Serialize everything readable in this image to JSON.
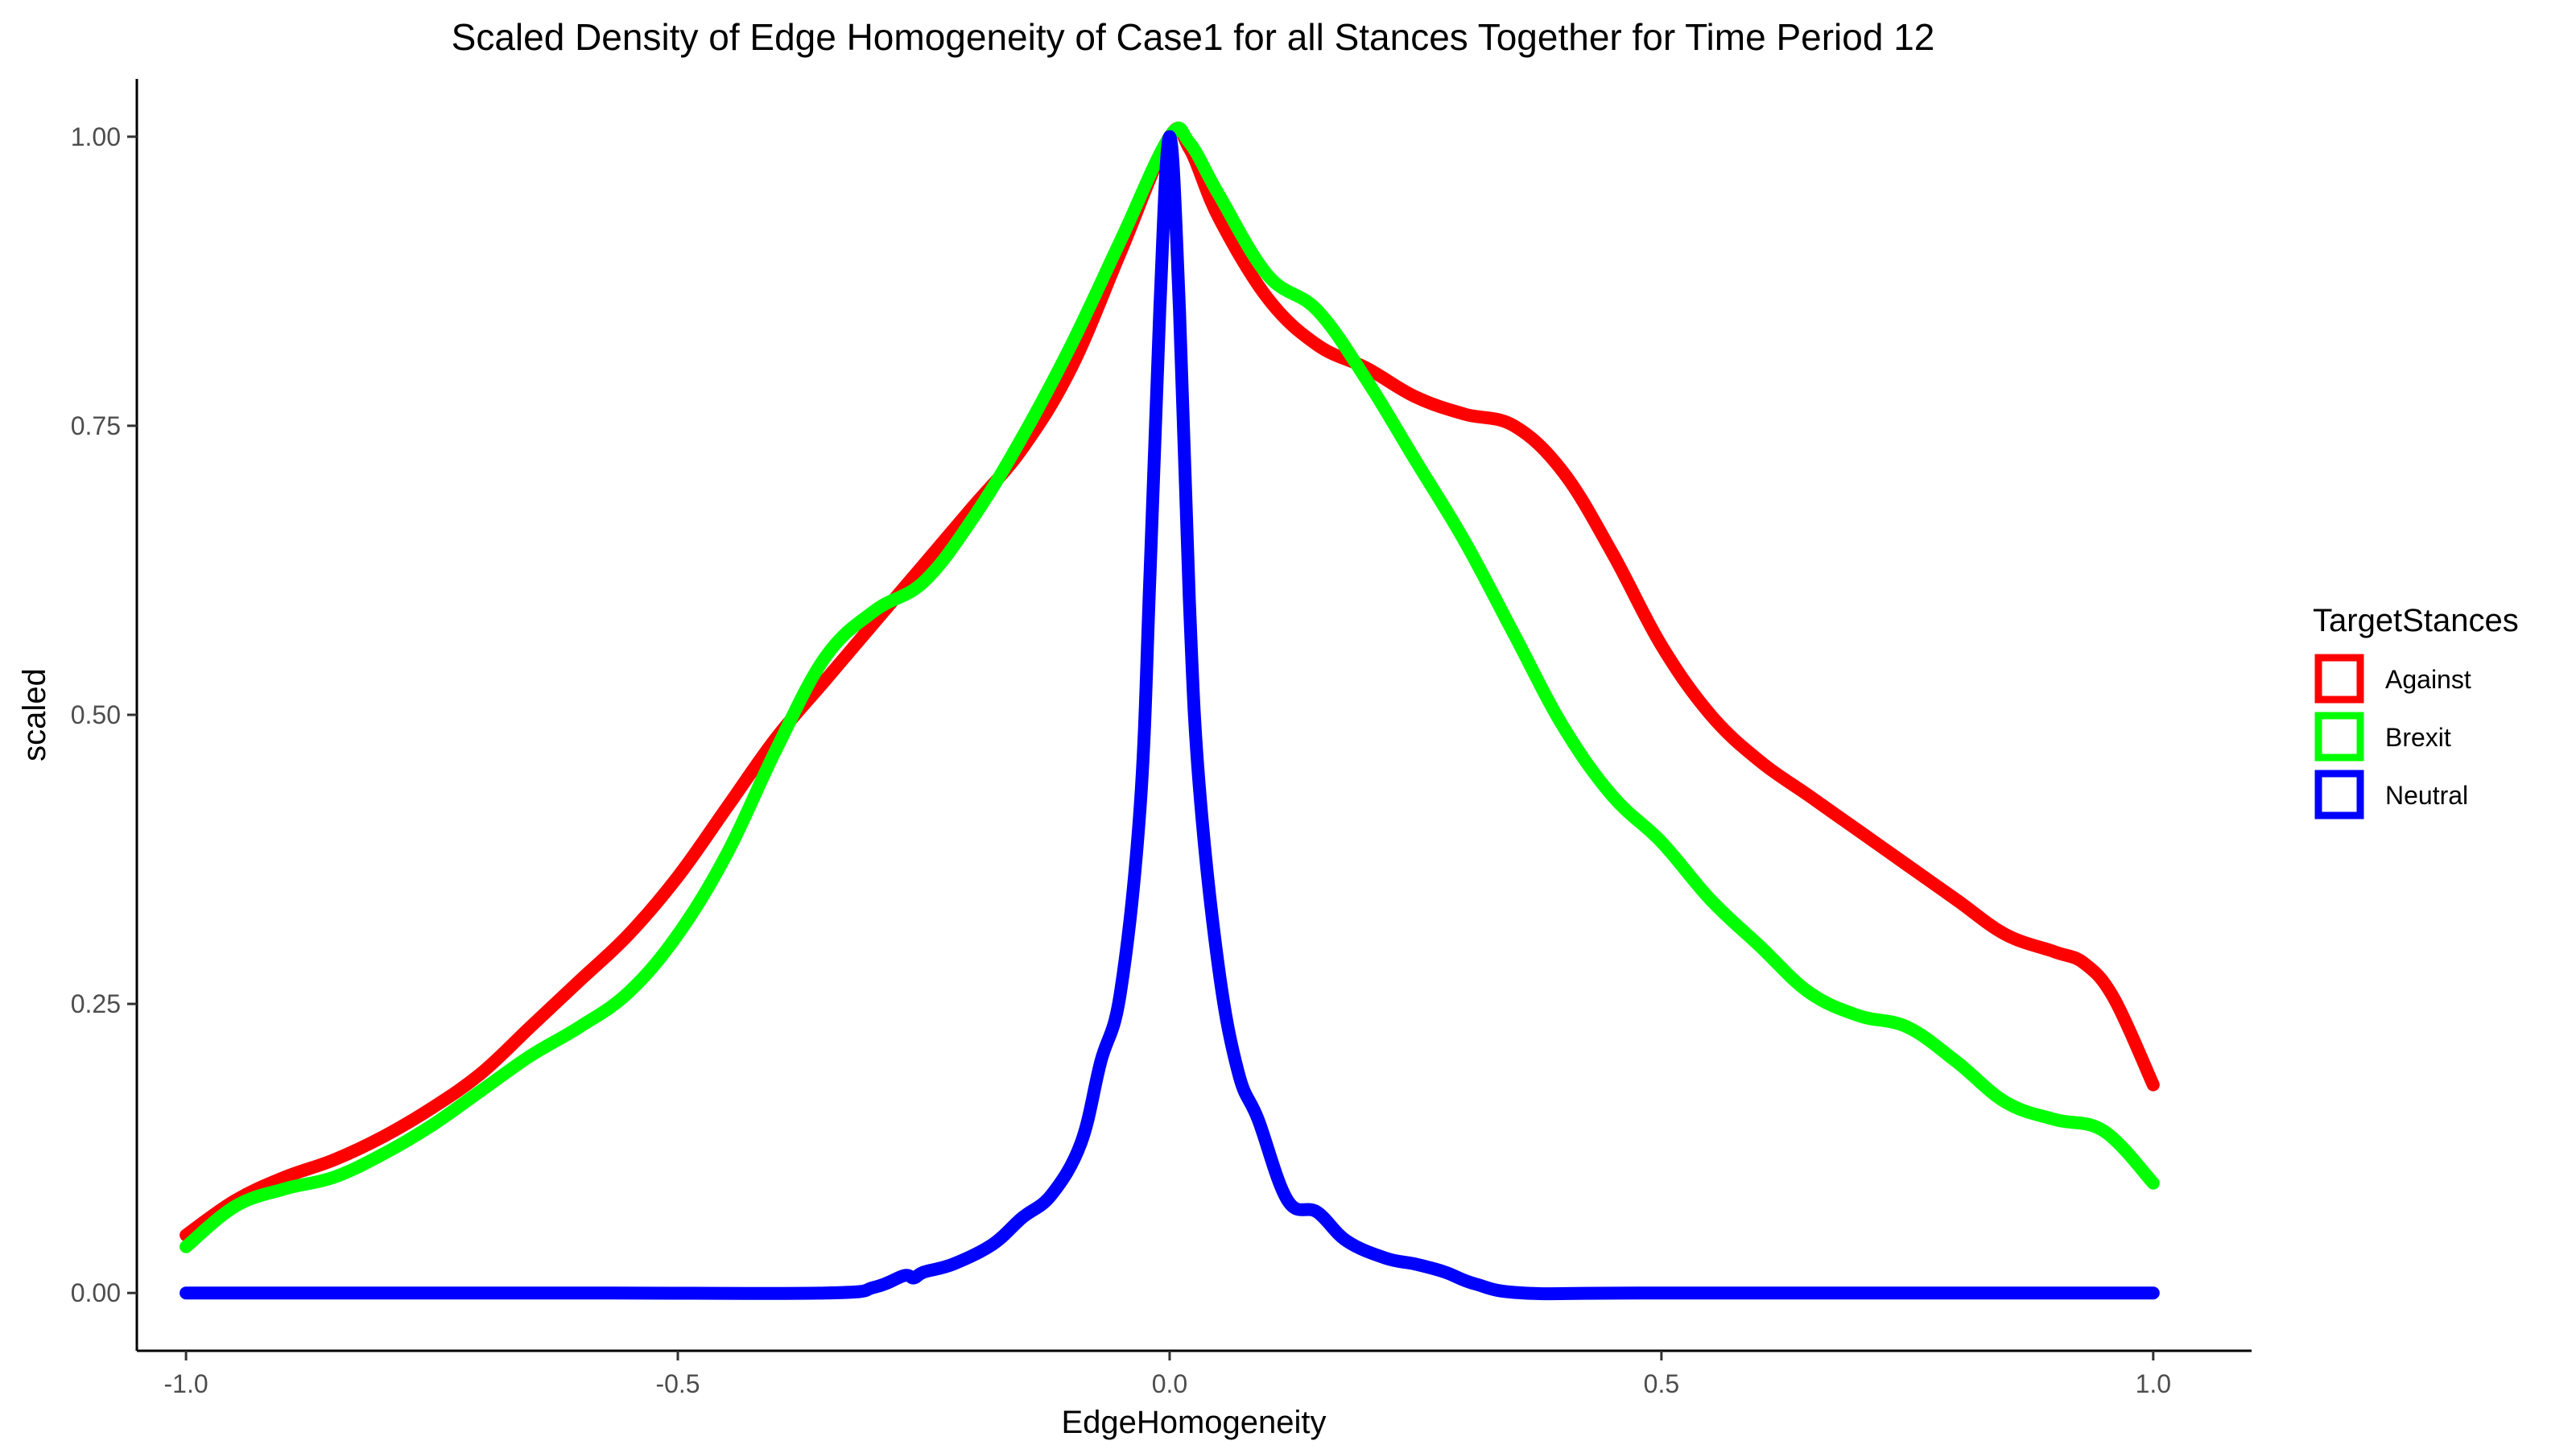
{
  "chart_data": {
    "type": "line",
    "title": "Scaled Density of Edge Homogeneity of Case1 for all Stances Together for Time Period 12",
    "xlabel": "EdgeHomogeneity",
    "ylabel": "scaled",
    "xlim": [
      -1.05,
      1.1
    ],
    "ylim": [
      -0.05,
      1.05
    ],
    "x_ticks": [
      -1.0,
      -0.5,
      0.0,
      0.5,
      1.0
    ],
    "x_tick_labels": [
      "-1.0",
      "-0.5",
      "0.0",
      "0.5",
      "1.0"
    ],
    "y_ticks": [
      0.0,
      0.25,
      0.5,
      0.75,
      1.0
    ],
    "y_tick_labels": [
      "0.00",
      "0.25",
      "0.50",
      "0.75",
      "1.00"
    ],
    "grid": false,
    "legend": {
      "title": "TargetStances",
      "position": "right"
    },
    "series": [
      {
        "name": "Against",
        "color": "#FF0000",
        "x": [
          -1.0,
          -0.95,
          -0.9,
          -0.85,
          -0.8,
          -0.75,
          -0.7,
          -0.65,
          -0.6,
          -0.55,
          -0.5,
          -0.45,
          -0.4,
          -0.35,
          -0.3,
          -0.25,
          -0.2,
          -0.15,
          -0.1,
          -0.05,
          0.0,
          0.02,
          0.05,
          0.1,
          0.15,
          0.2,
          0.25,
          0.3,
          0.35,
          0.4,
          0.45,
          0.5,
          0.55,
          0.6,
          0.65,
          0.7,
          0.75,
          0.8,
          0.85,
          0.9,
          0.93,
          0.96,
          1.0
        ],
        "y": [
          0.05,
          0.08,
          0.1,
          0.115,
          0.135,
          0.16,
          0.19,
          0.23,
          0.27,
          0.31,
          0.36,
          0.42,
          0.48,
          0.53,
          0.58,
          0.63,
          0.68,
          0.73,
          0.8,
          0.9,
          1.0,
          0.99,
          0.93,
          0.86,
          0.82,
          0.8,
          0.775,
          0.76,
          0.75,
          0.71,
          0.64,
          0.56,
          0.5,
          0.46,
          0.43,
          0.4,
          0.37,
          0.34,
          0.31,
          0.295,
          0.285,
          0.255,
          0.18
        ]
      },
      {
        "name": "Brexit",
        "color": "#00FF00",
        "x": [
          -1.0,
          -0.95,
          -0.9,
          -0.85,
          -0.8,
          -0.75,
          -0.7,
          -0.65,
          -0.6,
          -0.55,
          -0.5,
          -0.45,
          -0.4,
          -0.35,
          -0.3,
          -0.25,
          -0.2,
          -0.15,
          -0.1,
          -0.05,
          0.0,
          0.02,
          0.05,
          0.1,
          0.15,
          0.2,
          0.25,
          0.3,
          0.35,
          0.4,
          0.45,
          0.5,
          0.55,
          0.6,
          0.65,
          0.7,
          0.75,
          0.8,
          0.85,
          0.9,
          0.95,
          1.0
        ],
        "y": [
          0.04,
          0.075,
          0.09,
          0.1,
          0.12,
          0.145,
          0.175,
          0.205,
          0.23,
          0.26,
          0.31,
          0.38,
          0.47,
          0.55,
          0.59,
          0.615,
          0.67,
          0.74,
          0.82,
          0.91,
          1.0,
          0.995,
          0.95,
          0.88,
          0.85,
          0.79,
          0.72,
          0.65,
          0.57,
          0.49,
          0.43,
          0.39,
          0.34,
          0.3,
          0.26,
          0.24,
          0.23,
          0.2,
          0.165,
          0.15,
          0.14,
          0.095
        ]
      },
      {
        "name": "Neutral",
        "color": "#0000FF",
        "x": [
          -1.0,
          -0.6,
          -0.35,
          -0.3,
          -0.27,
          -0.26,
          -0.25,
          -0.22,
          -0.18,
          -0.15,
          -0.12,
          -0.09,
          -0.07,
          -0.05,
          -0.03,
          -0.02,
          -0.01,
          0.0,
          0.01,
          0.02,
          0.03,
          0.05,
          0.07,
          0.09,
          0.12,
          0.15,
          0.18,
          0.22,
          0.25,
          0.28,
          0.31,
          0.36,
          0.5,
          1.0
        ],
        "y": [
          0.0,
          0.0,
          0.0,
          0.005,
          0.015,
          0.013,
          0.018,
          0.025,
          0.042,
          0.065,
          0.085,
          0.13,
          0.2,
          0.26,
          0.42,
          0.62,
          0.85,
          1.0,
          0.85,
          0.6,
          0.44,
          0.28,
          0.19,
          0.15,
          0.08,
          0.07,
          0.045,
          0.03,
          0.025,
          0.018,
          0.008,
          0.0,
          0.0,
          0.0
        ]
      }
    ]
  }
}
